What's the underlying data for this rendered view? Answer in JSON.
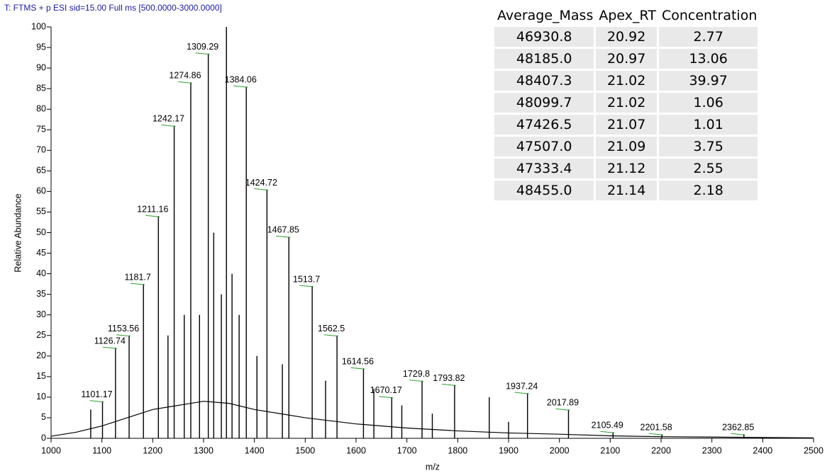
{
  "chart_data": {
    "type": "spectrum",
    "header": "T: FTMS + p ESI sid=15.00  Full ms [500.0000-3000.0000]",
    "ylabel": "Relative Abundance",
    "xlabel": "m/z",
    "xlim": [
      1000,
      2500
    ],
    "ylim": [
      0,
      100
    ],
    "xticks": [
      1000,
      1100,
      1200,
      1300,
      1400,
      1500,
      1600,
      1700,
      1800,
      1900,
      2000,
      2100,
      2200,
      2300,
      2400,
      2500
    ],
    "yticks": [
      0,
      5,
      10,
      15,
      20,
      25,
      30,
      35,
      40,
      45,
      50,
      55,
      60,
      65,
      70,
      75,
      80,
      85,
      90,
      95,
      100
    ],
    "color": "#000000",
    "label_marker_color": "#2ca02c",
    "labeled_peaks": {
      "x": [
        1101.17,
        1126.74,
        1153.56,
        1181.7,
        1211.16,
        1242.17,
        1274.86,
        1309.29,
        1384.06,
        1424.72,
        1467.85,
        1513.7,
        1562.5,
        1614.56,
        1670.17,
        1729.8,
        1793.82,
        1937.24,
        2017.89,
        2105.49,
        2201.58,
        2362.85
      ],
      "values": [
        9,
        22,
        25,
        37.5,
        54,
        76,
        86.5,
        93.5,
        85.5,
        60.5,
        49,
        37,
        25,
        17,
        10,
        14,
        13,
        11,
        7,
        1.5,
        1,
        1
      ]
    },
    "other_peaks": {
      "x": [
        1078,
        1230,
        1262,
        1292,
        1320,
        1335,
        1345,
        1356,
        1370,
        1405,
        1455,
        1540,
        1635,
        1690,
        1750,
        1862,
        1900
      ],
      "values": [
        7,
        25,
        30,
        30,
        50,
        35,
        100,
        40,
        30,
        20,
        18,
        14,
        12,
        8,
        6,
        10,
        4
      ]
    },
    "baseline": {
      "x": [
        1000,
        1050,
        1100,
        1150,
        1200,
        1250,
        1300,
        1350,
        1400,
        1450,
        1500,
        1600,
        1700,
        1800,
        1900,
        2000,
        2100,
        2200,
        2300,
        2400,
        2500
      ],
      "values": [
        0.5,
        1.5,
        3,
        5,
        7,
        8,
        9,
        8.5,
        7,
        6,
        5,
        3.5,
        2.5,
        1.8,
        1.3,
        1,
        0.6,
        0.4,
        0.3,
        0.2,
        0.1
      ]
    }
  },
  "table": {
    "columns": [
      "Average_Mass",
      "Apex_RT",
      "Concentration"
    ],
    "rows": [
      [
        "46930.8",
        "20.92",
        "2.77"
      ],
      [
        "48185.0",
        "20.97",
        "13.06"
      ],
      [
        "48407.3",
        "21.02",
        "39.97"
      ],
      [
        "48099.7",
        "21.02",
        "1.06"
      ],
      [
        "47426.5",
        "21.07",
        "1.01"
      ],
      [
        "47507.0",
        "21.09",
        "3.75"
      ],
      [
        "47333.4",
        "21.12",
        "2.55"
      ],
      [
        "48455.0",
        "21.14",
        "2.18"
      ]
    ]
  }
}
